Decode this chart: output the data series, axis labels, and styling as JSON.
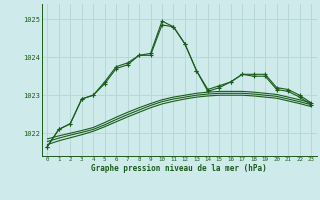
{
  "title": "Graphe pression niveau de la mer (hPa)",
  "background_color": "#ceeaea",
  "grid_color": "#b8d8d8",
  "line_color": "#1a5c1a",
  "xlim": [
    -0.5,
    23.5
  ],
  "ylim": [
    1021.4,
    1025.4
  ],
  "yticks": [
    1022,
    1023,
    1024,
    1025
  ],
  "xticks": [
    0,
    1,
    2,
    3,
    4,
    5,
    6,
    7,
    8,
    9,
    10,
    11,
    12,
    13,
    14,
    15,
    16,
    17,
    18,
    19,
    20,
    21,
    22,
    23
  ],
  "hours": [
    0,
    1,
    2,
    3,
    4,
    5,
    6,
    7,
    8,
    9,
    10,
    11,
    12,
    13,
    14,
    15,
    16,
    17,
    18,
    19,
    20,
    21,
    22,
    23
  ],
  "line1": [
    1021.65,
    1022.1,
    1022.25,
    1022.9,
    1023.0,
    1023.35,
    1023.75,
    1023.85,
    1024.05,
    1024.1,
    1024.95,
    1024.8,
    1024.35,
    1023.65,
    1023.15,
    1023.25,
    1023.35,
    1023.55,
    1023.55,
    1023.55,
    1023.2,
    1023.15,
    1023.0,
    1022.8
  ],
  "line2": [
    1021.65,
    1022.1,
    1022.25,
    1022.9,
    1023.0,
    1023.3,
    1023.7,
    1023.8,
    1024.05,
    1024.05,
    1024.85,
    1024.8,
    1024.35,
    1023.65,
    1023.1,
    1023.2,
    1023.35,
    1023.55,
    1023.5,
    1023.5,
    1023.15,
    1023.1,
    1022.95,
    1022.75
  ],
  "smooth1": [
    1021.85,
    1021.93,
    1022.0,
    1022.07,
    1022.15,
    1022.28,
    1022.42,
    1022.55,
    1022.67,
    1022.78,
    1022.88,
    1022.95,
    1023.0,
    1023.05,
    1023.08,
    1023.1,
    1023.1,
    1023.1,
    1023.08,
    1023.05,
    1023.02,
    1022.95,
    1022.88,
    1022.8
  ],
  "smooth2": [
    1021.78,
    1021.87,
    1021.95,
    1022.02,
    1022.1,
    1022.22,
    1022.36,
    1022.49,
    1022.61,
    1022.73,
    1022.83,
    1022.9,
    1022.95,
    1023.0,
    1023.03,
    1023.05,
    1023.05,
    1023.05,
    1023.03,
    1023.0,
    1022.97,
    1022.9,
    1022.83,
    1022.75
  ],
  "smooth3": [
    1021.7,
    1021.8,
    1021.88,
    1021.96,
    1022.05,
    1022.17,
    1022.3,
    1022.43,
    1022.55,
    1022.67,
    1022.77,
    1022.84,
    1022.9,
    1022.95,
    1022.98,
    1023.0,
    1023.0,
    1023.0,
    1022.98,
    1022.95,
    1022.92,
    1022.85,
    1022.78,
    1022.7
  ]
}
